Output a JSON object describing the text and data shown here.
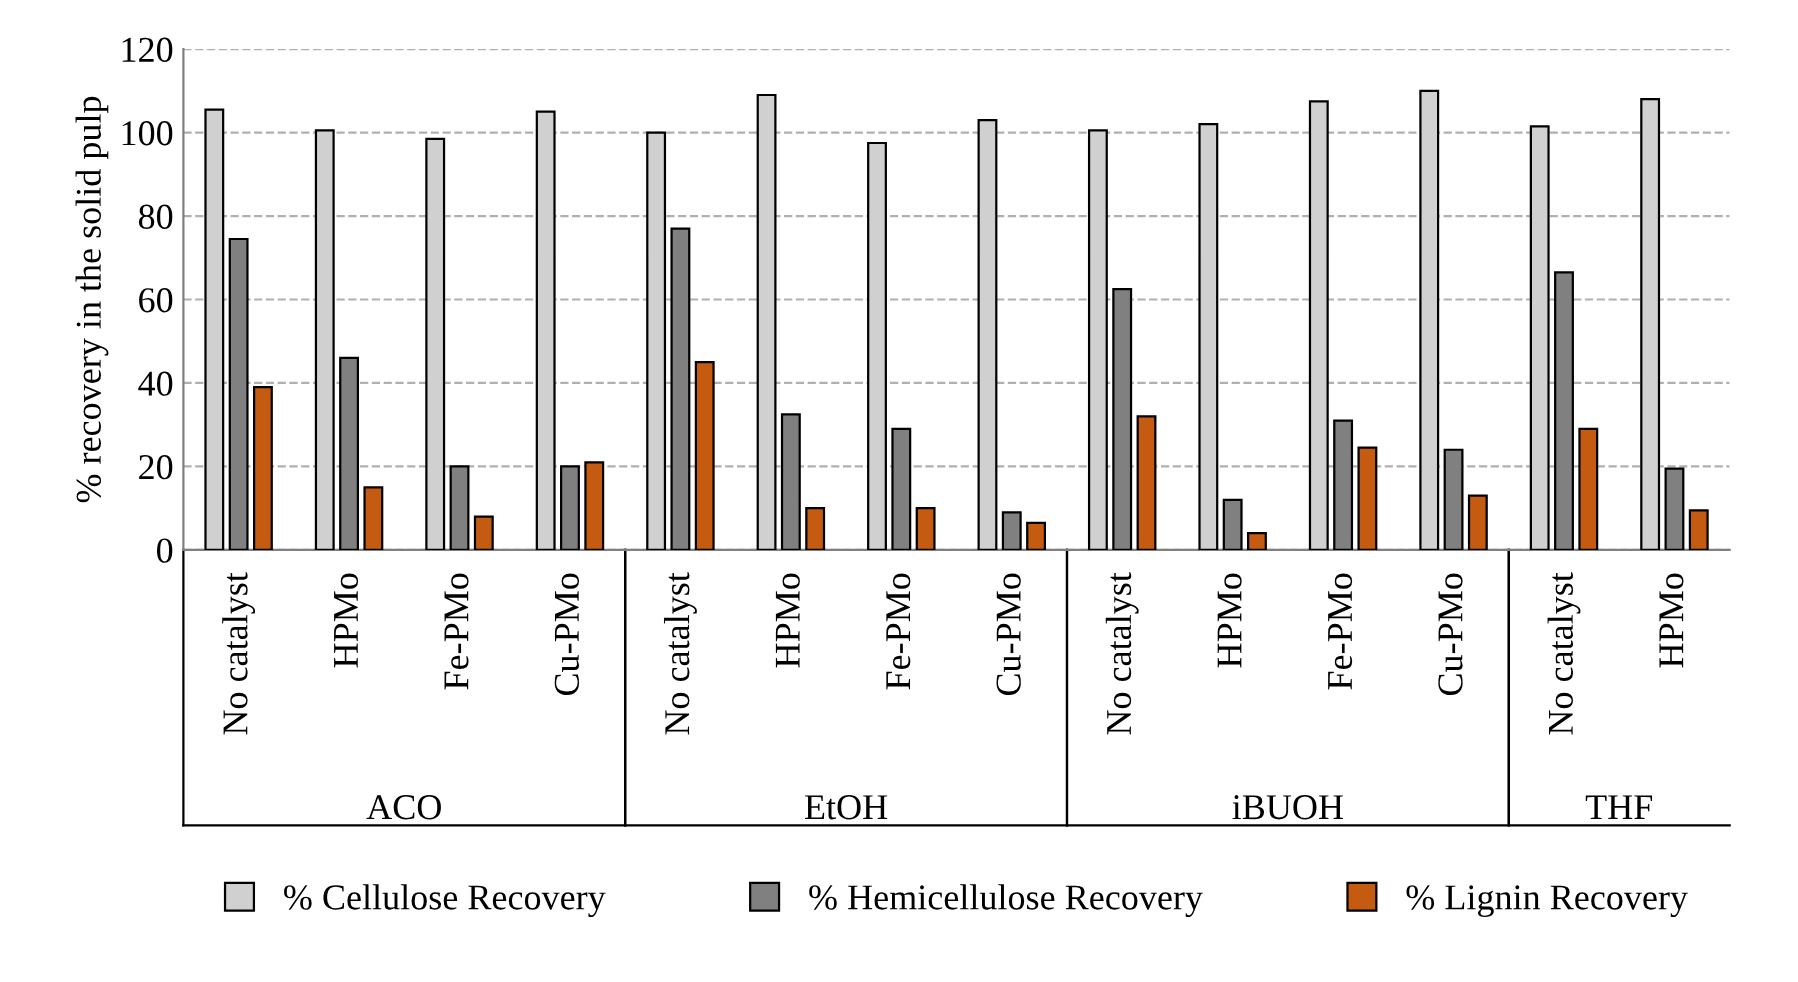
{
  "chart_data": {
    "type": "bar",
    "ylabel": "% recovery in the solid pulp",
    "categories": [
      "No catalyst",
      "HPMo",
      "Fe-PMo",
      "Cu-PMo",
      "No catalyst",
      "HPMo",
      "Fe-PMo",
      "Cu-PMo",
      "No catalyst",
      "HPMo",
      "Fe-PMo",
      "Cu-PMo",
      "No catalyst",
      "HPMo"
    ],
    "annotations": [
      "ACO",
      "EtOH",
      "iBUOH",
      "THF"
    ],
    "series": [
      {
        "name": "% Cellulose Recovery",
        "color": "#d0d0d0",
        "values": [
          105.5,
          100.5,
          98.5,
          105,
          100,
          109,
          97.5,
          103,
          100.5,
          102,
          107.5,
          110,
          101.5,
          108
        ]
      },
      {
        "name": "% Hemicellulose Recovery",
        "color": "#808080",
        "values": [
          74.5,
          46,
          20,
          20,
          77,
          32.5,
          29,
          9,
          62.5,
          12,
          31,
          24,
          66.5,
          19.5
        ]
      },
      {
        "name": "% Lignin Recovery",
        "color": "#c55a11",
        "values": [
          39,
          15,
          8,
          21,
          45,
          10,
          10,
          6.5,
          32,
          4,
          24.5,
          13,
          29,
          9.5
        ]
      }
    ],
    "ylim": [
      0,
      120
    ],
    "yticks": [
      0,
      20,
      40,
      60,
      80,
      100,
      120
    ],
    "grid": "y",
    "legend": "bottom"
  }
}
